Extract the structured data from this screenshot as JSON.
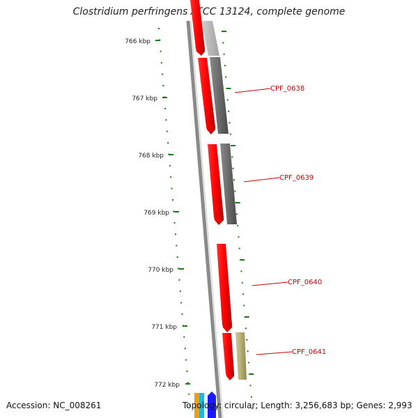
{
  "title": "Clostridium perfringens ATCC 13124, complete genome",
  "footer": {
    "accession_label": "Accession:",
    "accession": "NC_008261",
    "topology_label": "Topology:",
    "topology": "circular",
    "length_label": "Length:",
    "length": "3,256,683 bp",
    "genes_label": "Genes:",
    "genes": "2,993"
  },
  "ruler": {
    "ticks": [
      "766 kbp",
      "767 kbp",
      "768 kbp",
      "769 kbp",
      "770 kbp",
      "771 kbp",
      "772 kbp"
    ],
    "tick_color": "#1a7a1a"
  },
  "genes": [
    {
      "label": "CPF_0638",
      "color": "#cc0000"
    },
    {
      "label": "CPF_0639",
      "color": "#cc0000"
    },
    {
      "label": "CPF_0640",
      "color": "#cc0000"
    },
    {
      "label": "CPF_0641",
      "color": "#cc0000"
    }
  ],
  "colors": {
    "forward_strand": "#ff0000",
    "ortholog_gray": "#707070",
    "ortholog_light": "#b8b8b8",
    "ortholog_khaki": "#b5ae74",
    "backbone": "#8a8a8a"
  }
}
